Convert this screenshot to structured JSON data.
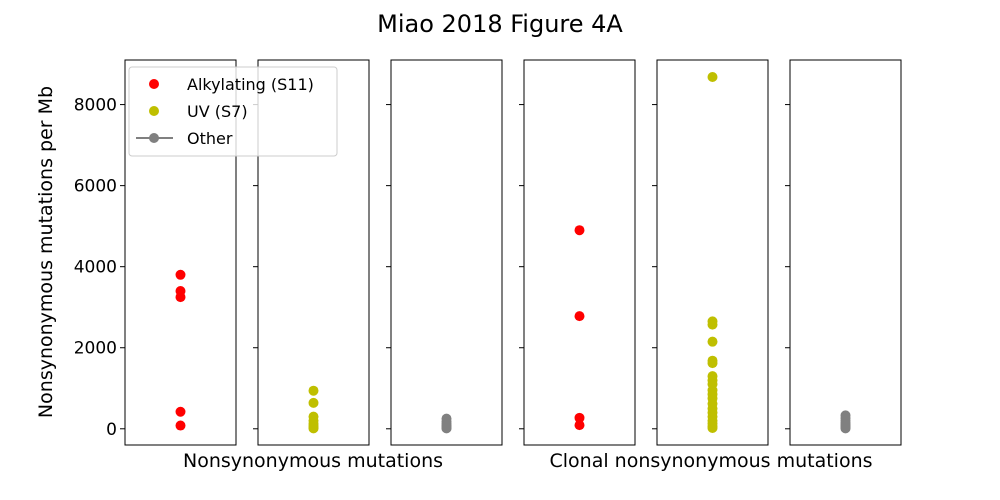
{
  "chart_data": {
    "type": "scatter",
    "title": "Miao 2018 Figure 4A",
    "ylabel": "Nonsynonymous mutations per Mb",
    "ylim": [
      -400,
      9100
    ],
    "yticks": [
      0,
      2000,
      4000,
      6000,
      8000
    ],
    "tick_labels": [
      "0",
      "2000",
      "4000",
      "6000",
      "8000"
    ],
    "group_labels": [
      "Nonsynonymous mutations",
      "Clonal nonsynonymous mutations"
    ],
    "legend": {
      "placement": "upper-left",
      "entries": [
        {
          "label": "Alkylating (S11)",
          "color": "#ff0000",
          "marker": "dot"
        },
        {
          "label": "UV (S7)",
          "color": "#bfbf00",
          "marker": "dot"
        },
        {
          "label": "Other",
          "color": "#808080",
          "marker": "line-dot"
        }
      ]
    },
    "panels": [
      {
        "group": 0,
        "series": "Alkylating (S11)",
        "color": "#ff0000",
        "values": [
          3800,
          3400,
          3250,
          420,
          80
        ]
      },
      {
        "group": 0,
        "series": "UV (S7)",
        "color": "#bfbf00",
        "values": [
          940,
          640,
          300,
          200,
          120,
          70,
          30,
          10
        ]
      },
      {
        "group": 0,
        "series": "Other",
        "color": "#808080",
        "values": [
          250,
          180,
          130,
          90,
          60,
          40,
          20,
          10
        ]
      },
      {
        "group": 1,
        "series": "Alkylating (S11)",
        "color": "#ff0000",
        "values": [
          4900,
          2780,
          270,
          90
        ]
      },
      {
        "group": 1,
        "series": "UV (S7)",
        "color": "#bfbf00",
        "values": [
          8680,
          2650,
          2570,
          2150,
          1680,
          1620,
          1300,
          1200,
          1100,
          950,
          850,
          750,
          620,
          500,
          400,
          300,
          200,
          130,
          60,
          20
        ]
      },
      {
        "group": 1,
        "series": "Other",
        "color": "#808080",
        "values": [
          330,
          260,
          200,
          150,
          110,
          80,
          50,
          25,
          10
        ]
      }
    ]
  }
}
